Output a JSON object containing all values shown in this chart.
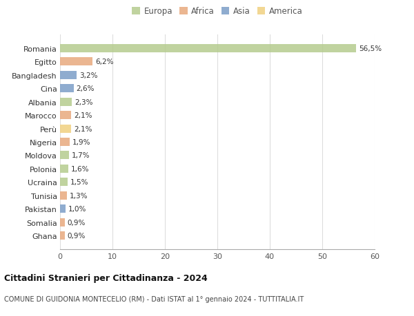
{
  "countries": [
    "Romania",
    "Egitto",
    "Bangladesh",
    "Cina",
    "Albania",
    "Marocco",
    "Perù",
    "Nigeria",
    "Moldova",
    "Polonia",
    "Ucraina",
    "Tunisia",
    "Pakistan",
    "Somalia",
    "Ghana"
  ],
  "values": [
    56.5,
    6.2,
    3.2,
    2.6,
    2.3,
    2.1,
    2.1,
    1.9,
    1.7,
    1.6,
    1.5,
    1.3,
    1.0,
    0.9,
    0.9
  ],
  "labels": [
    "56,5%",
    "6,2%",
    "3,2%",
    "2,6%",
    "2,3%",
    "2,1%",
    "2,1%",
    "1,9%",
    "1,7%",
    "1,6%",
    "1,5%",
    "1,3%",
    "1,0%",
    "0,9%",
    "0,9%"
  ],
  "continent": [
    "Europa",
    "Africa",
    "Asia",
    "Asia",
    "Europa",
    "Africa",
    "America",
    "Africa",
    "Europa",
    "Europa",
    "Europa",
    "Africa",
    "Asia",
    "Africa",
    "Africa"
  ],
  "colors": {
    "Europa": "#b5cc8e",
    "Africa": "#e8a97e",
    "Asia": "#7b9ec7",
    "America": "#f0d080"
  },
  "legend_order": [
    "Europa",
    "Africa",
    "Asia",
    "America"
  ],
  "title": "Cittadini Stranieri per Cittadinanza - 2024",
  "subtitle": "COMUNE DI GUIDONIA MONTECELIO (RM) - Dati ISTAT al 1° gennaio 2024 - TUTTITALIA.IT",
  "xlim": [
    0,
    60
  ],
  "xticks": [
    0,
    10,
    20,
    30,
    40,
    50,
    60
  ],
  "bg_color": "#ffffff",
  "grid_color": "#dddddd"
}
